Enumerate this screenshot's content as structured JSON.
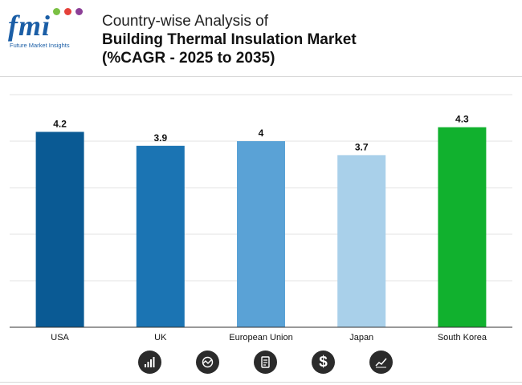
{
  "header": {
    "logo_text": "fmi",
    "logo_subtitle": "Future Market Insights",
    "title_line1": "Country-wise Analysis of",
    "title_line2": "Building Thermal Insulation Market",
    "title_line3": "(%CAGR - 2025 to 2035)"
  },
  "chart_data": {
    "type": "bar",
    "title": "Country-wise Analysis of Building Thermal Insulation Market (%CAGR - 2025 to 2035)",
    "categories": [
      "USA",
      "UK",
      "European Union",
      "Japan",
      "South Korea"
    ],
    "values": [
      4.2,
      3.9,
      4,
      3.7,
      4.3
    ],
    "value_labels": [
      "4.2",
      "3.9",
      "4",
      "3.7",
      "4.3"
    ],
    "bar_colors": [
      "#0a5a94",
      "#1b74b3",
      "#5aa2d6",
      "#a9d0ea",
      "#11b12e"
    ],
    "ylim": [
      0,
      5
    ],
    "grid": true,
    "legend": "none",
    "xlabel": "",
    "ylabel": ""
  },
  "footer_icons": [
    {
      "name": "bar-growth-icon"
    },
    {
      "name": "analysis-chart-icon"
    },
    {
      "name": "report-document-icon"
    },
    {
      "name": "dollar-icon",
      "glyph": "$"
    },
    {
      "name": "line-trend-icon"
    }
  ]
}
